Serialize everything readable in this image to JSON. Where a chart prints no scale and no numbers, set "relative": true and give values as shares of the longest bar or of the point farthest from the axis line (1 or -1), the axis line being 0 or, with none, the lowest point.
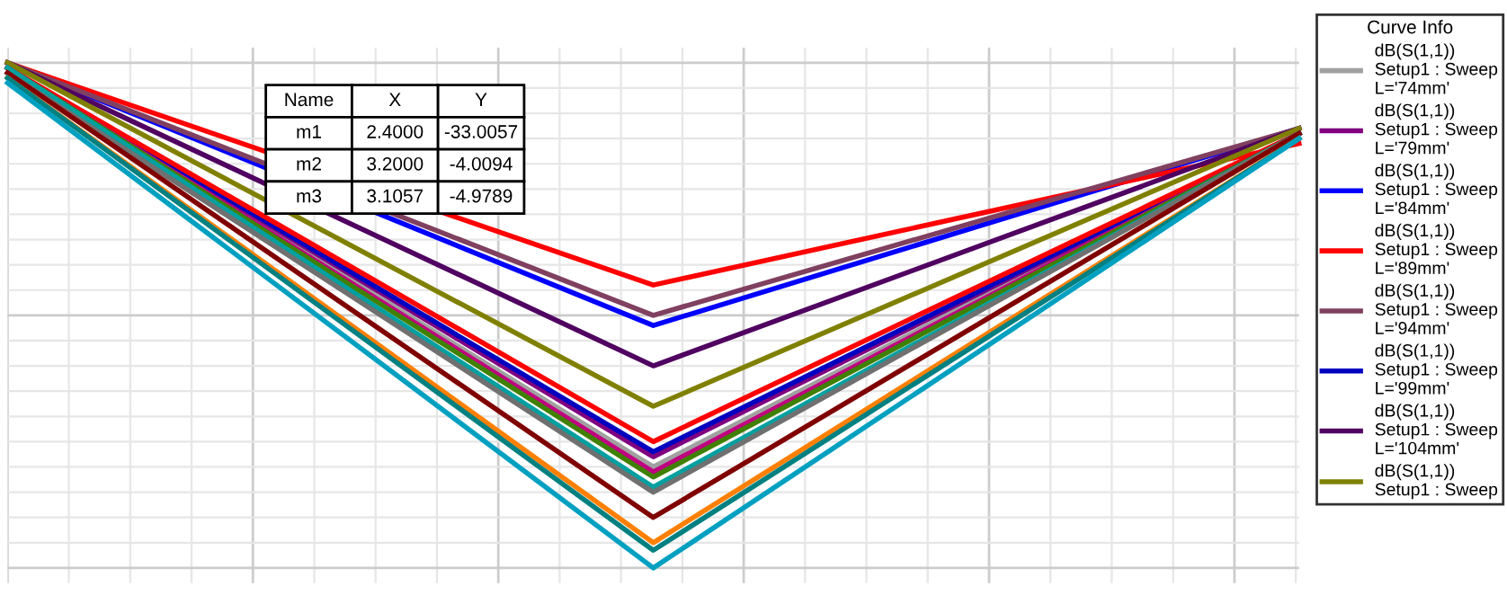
{
  "chart_data": {
    "type": "line",
    "relative": true,
    "categories": [
      null,
      null,
      null
    ],
    "grid": true,
    "legend": "right",
    "legend_title": "Curve Info",
    "line_style": "solid",
    "annotations": [
      "Name",
      "X",
      "Y",
      "m1",
      "2.4000",
      "-33.0057",
      "m2",
      "3.2000",
      "-4.0094",
      "m3",
      "3.1057",
      "-4.9789"
    ],
    "series": [
      {
        "name": "dB(S(1,1))\nSetup1 : Sweep\nL='74mm'",
        "color": "#a0a0a0",
        "values": [
          0.99,
          0.2,
          0.86
        ]
      },
      {
        "name": "dB(S(1,1))\nSetup1 : Sweep\nL='79mm'",
        "color": "#800080",
        "values": [
          0.99,
          0.22,
          0.86
        ]
      },
      {
        "name": "dB(S(1,1))\nSetup1 : Sweep\nL='84mm'",
        "color": "#0000ff",
        "values": [
          1.0,
          0.48,
          0.87
        ]
      },
      {
        "name": "dB(S(1,1))\nSetup1 : Sweep\nL='89mm'",
        "color": "#ff0000",
        "values": [
          1.0,
          0.56,
          0.84
        ]
      },
      {
        "name": "dB(S(1,1))\nSetup1 : Sweep\nL='94mm'",
        "color": "#804060",
        "values": [
          1.0,
          0.5,
          0.87
        ]
      },
      {
        "name": "dB(S(1,1))\nSetup1 : Sweep\nL='99mm'",
        "color": "#0000c0",
        "values": [
          0.99,
          0.23,
          0.86
        ]
      },
      {
        "name": "dB(S(1,1))\nSetup1 : Sweep\nL='104mm'",
        "color": "#500060",
        "values": [
          1.0,
          0.4,
          0.87
        ]
      },
      {
        "name": "dB(S(1,1))\nSetup1 : Sweep",
        "color": "#808000",
        "values": [
          1.0,
          0.32,
          0.87
        ]
      },
      {
        "color": "#ff0000",
        "values": [
          0.99,
          0.25,
          0.86
        ]
      },
      {
        "color": "#c00080",
        "values": [
          0.99,
          0.19,
          0.86
        ]
      },
      {
        "color": "#408000",
        "values": [
          0.99,
          0.18,
          0.86
        ]
      },
      {
        "color": "#00a0a0",
        "values": [
          0.99,
          0.16,
          0.86
        ]
      },
      {
        "color": "#707070",
        "values": [
          0.98,
          0.15,
          0.86
        ]
      },
      {
        "color": "#800000",
        "values": [
          0.98,
          0.1,
          0.86
        ]
      },
      {
        "color": "#ff8000",
        "values": [
          0.97,
          0.05,
          0.85
        ]
      },
      {
        "color": "#008080",
        "values": [
          0.97,
          0.035,
          0.85
        ]
      },
      {
        "color": "#00a0c0",
        "values": [
          0.96,
          0.0,
          0.85
        ]
      }
    ]
  }
}
